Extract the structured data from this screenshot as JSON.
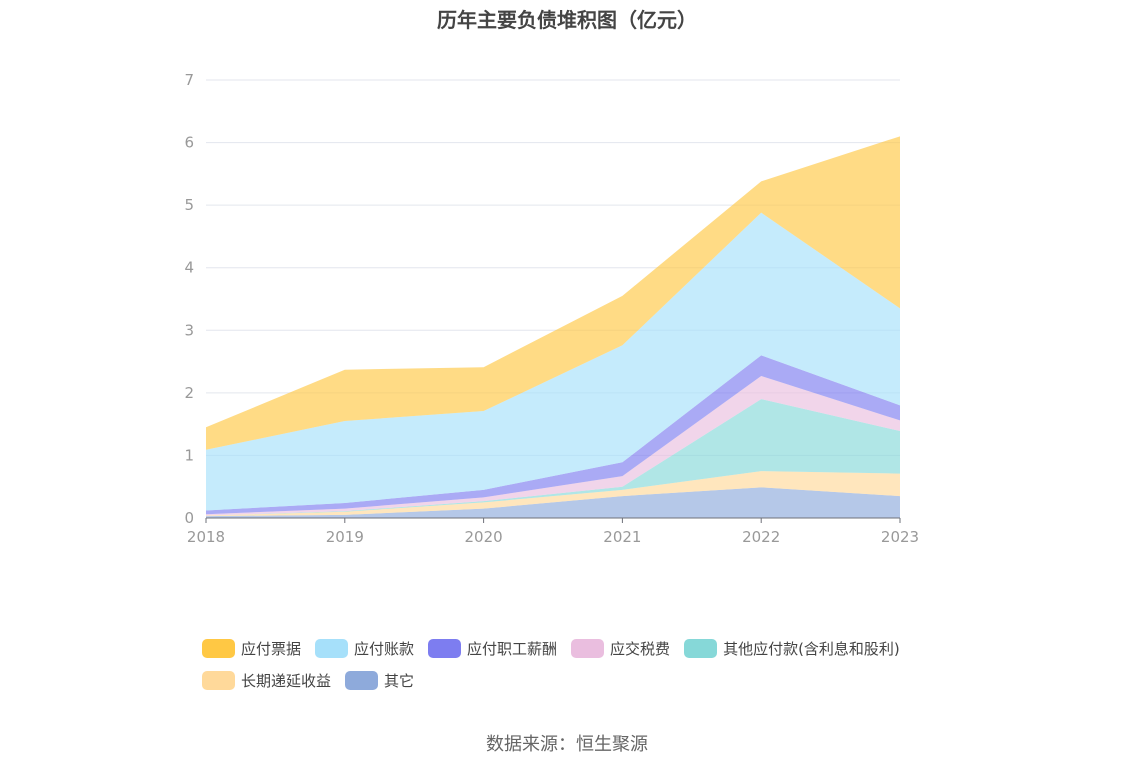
{
  "chart_data": {
    "type": "area",
    "stacked": true,
    "title": "历年主要负债堆积图（亿元）",
    "x": [
      "2018",
      "2019",
      "2020",
      "2021",
      "2022",
      "2023"
    ],
    "yticks": [
      "0",
      "1",
      "2",
      "3",
      "4",
      "5",
      "6",
      "7"
    ],
    "ylim": [
      0,
      7
    ],
    "grid": true,
    "legend_position": "bottom",
    "series": [
      {
        "name": "其它",
        "color": "#8eaadb",
        "values": [
          0.03,
          0.05,
          0.15,
          0.35,
          0.49,
          0.35
        ]
      },
      {
        "name": "长期递延收益",
        "color": "#ffd99a",
        "values": [
          0.01,
          0.05,
          0.1,
          0.1,
          0.26,
          0.36
        ]
      },
      {
        "name": "其他应付款(含利息和股利)",
        "color": "#86d8d8",
        "values": [
          0.0,
          0.01,
          0.02,
          0.05,
          1.15,
          0.68
        ]
      },
      {
        "name": "应交税费",
        "color": "#eabedf",
        "values": [
          0.02,
          0.04,
          0.06,
          0.17,
          0.37,
          0.17
        ]
      },
      {
        "name": "应付职工薪酬",
        "color": "#7d7df0",
        "values": [
          0.06,
          0.09,
          0.12,
          0.22,
          0.33,
          0.24
        ]
      },
      {
        "name": "应付账款",
        "color": "#a6e0fa",
        "values": [
          0.97,
          1.31,
          1.26,
          1.87,
          2.28,
          1.55
        ]
      },
      {
        "name": "应付票据",
        "color": "#ffc844",
        "values": [
          0.36,
          0.82,
          0.7,
          0.79,
          0.5,
          2.75
        ]
      }
    ]
  },
  "legend": [
    {
      "label": "应付票据",
      "color": "#ffc844"
    },
    {
      "label": "应付账款",
      "color": "#a6e0fa"
    },
    {
      "label": "应付职工薪酬",
      "color": "#7d7df0"
    },
    {
      "label": "应交税费",
      "color": "#eabedf"
    },
    {
      "label": "其他应付款(含利息和股利)",
      "color": "#86d8d8"
    },
    {
      "label": "长期递延收益",
      "color": "#ffd99a"
    },
    {
      "label": "其它",
      "color": "#8eaadb"
    }
  ],
  "source": "数据来源：恒生聚源"
}
